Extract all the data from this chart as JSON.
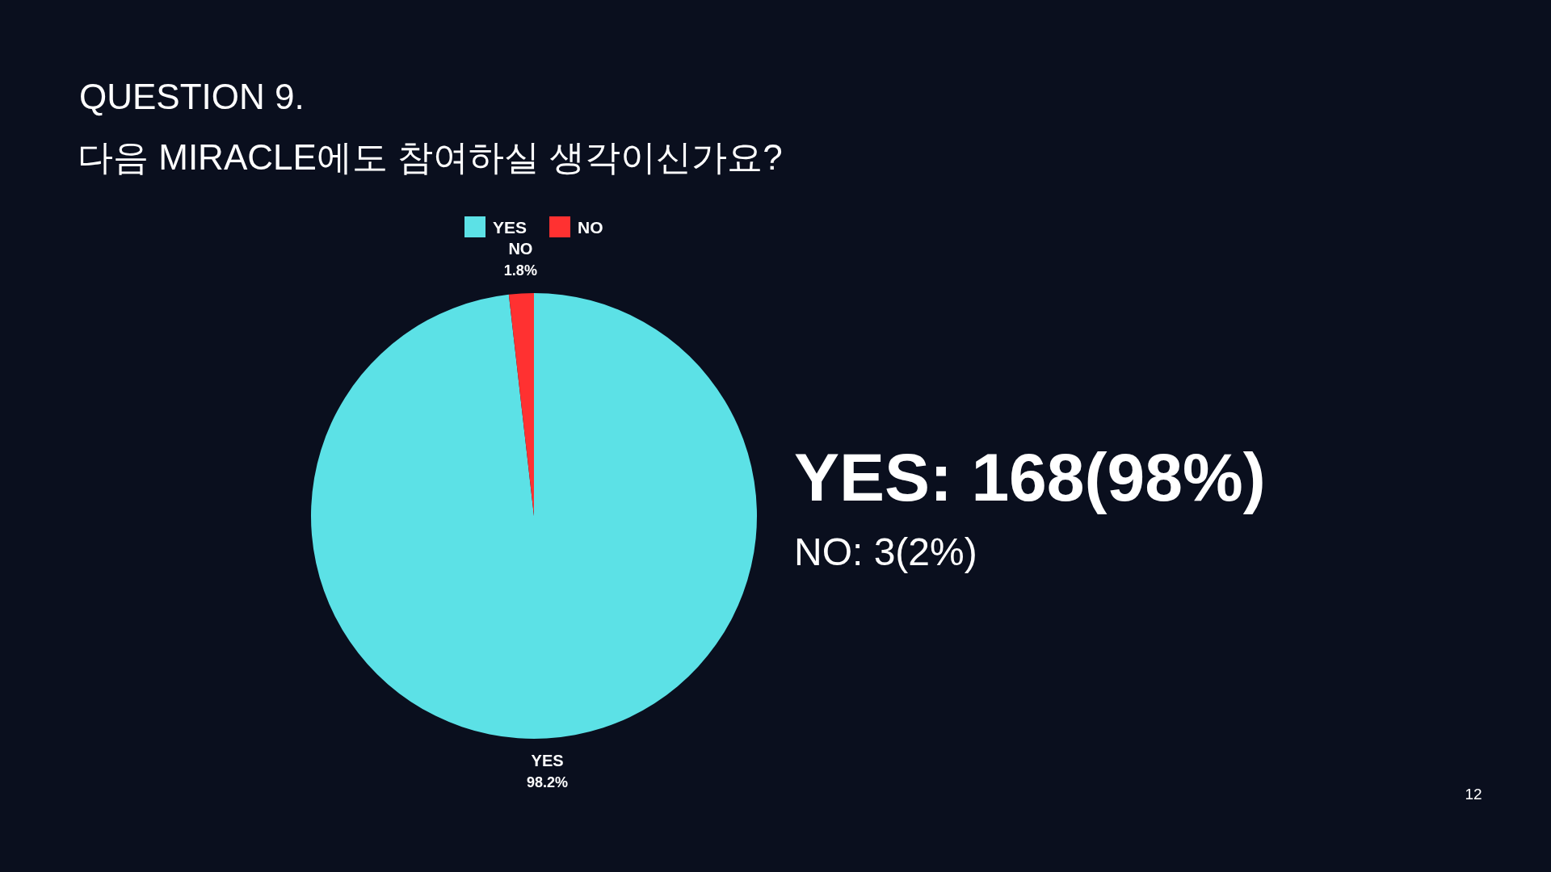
{
  "chart_data": {
    "type": "pie",
    "title": "QUESTION 9.",
    "subtitle": "다음 MIRACLE에도 참여하실 생각이신가요?",
    "categories": [
      "YES",
      "NO"
    ],
    "values": [
      98.2,
      1.8
    ],
    "colors": [
      "#5ce1e6",
      "#ff3131"
    ],
    "value_labels": [
      "98.2%",
      "1.8%"
    ],
    "legend": "top",
    "annotations": [
      "YES: 168(98%)",
      "NO: 3(2%)",
      "12"
    ]
  }
}
